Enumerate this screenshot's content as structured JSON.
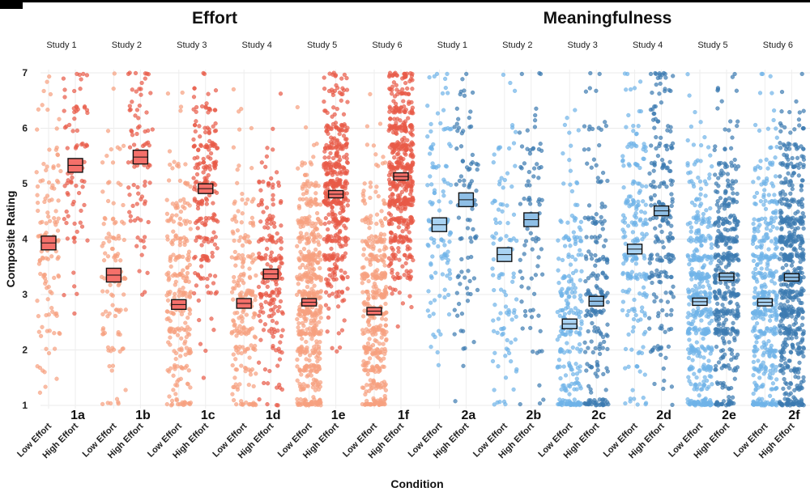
{
  "chart_data": {
    "type": "scatter",
    "subtype": "jittered strip plot with mean markers",
    "ylabel": "Composite Rating",
    "xlabel": "Condition",
    "ylim": [
      1,
      7
    ],
    "yticks": [
      1,
      2,
      3,
      4,
      5,
      6,
      7
    ],
    "categories": [
      "Low Effort",
      "High Effort"
    ],
    "colors": {
      "effort_low": "#f7a07f",
      "effort_high": "#e85a47",
      "meaning_low": "#6fb3e8",
      "meaning_high": "#3c7ab1",
      "effort_mean": "#f4706a",
      "meaning_mean_low": "#a9d3f3",
      "meaning_mean_high": "#8fbfe6"
    },
    "sections": [
      {
        "title": "Effort",
        "panels": [
          {
            "study": "Study 1",
            "tag": "1a",
            "n": [
              120,
              80
            ],
            "means": [
              3.93,
              5.33
            ]
          },
          {
            "study": "Study 2",
            "tag": "1b",
            "n": [
              110,
              80
            ],
            "means": [
              3.35,
              5.48
            ]
          },
          {
            "study": "Study 3",
            "tag": "1c",
            "n": [
              240,
              210
            ],
            "means": [
              2.82,
              4.91
            ]
          },
          {
            "study": "Study 4",
            "tag": "1d",
            "n": [
              210,
              200
            ],
            "means": [
              2.84,
              3.37
            ]
          },
          {
            "study": "Study 5",
            "tag": "1e",
            "n": [
              520,
              420
            ],
            "means": [
              2.86,
              4.81
            ]
          },
          {
            "study": "Study 6",
            "tag": "1f",
            "n": [
              420,
              520
            ],
            "means": [
              2.7,
              5.13
            ]
          }
        ]
      },
      {
        "title": "Meaningfulness",
        "panels": [
          {
            "study": "Study 1",
            "tag": "2a",
            "n": [
              120,
              90
            ],
            "means": [
              4.26,
              4.71
            ]
          },
          {
            "study": "Study 2",
            "tag": "2b",
            "n": [
              110,
              85
            ],
            "means": [
              3.72,
              4.35
            ]
          },
          {
            "study": "Study 3",
            "tag": "2c",
            "n": [
              240,
              200
            ],
            "means": [
              2.47,
              2.88
            ]
          },
          {
            "study": "Study 4",
            "tag": "2d",
            "n": [
              210,
              210
            ],
            "means": [
              3.82,
              4.51
            ]
          },
          {
            "study": "Study 5",
            "tag": "2e",
            "n": [
              420,
              420
            ],
            "means": [
              2.87,
              3.32
            ]
          },
          {
            "study": "Study 6",
            "tag": "2f",
            "n": [
              420,
              600
            ],
            "means": [
              2.86,
              3.31
            ]
          }
        ]
      }
    ]
  }
}
